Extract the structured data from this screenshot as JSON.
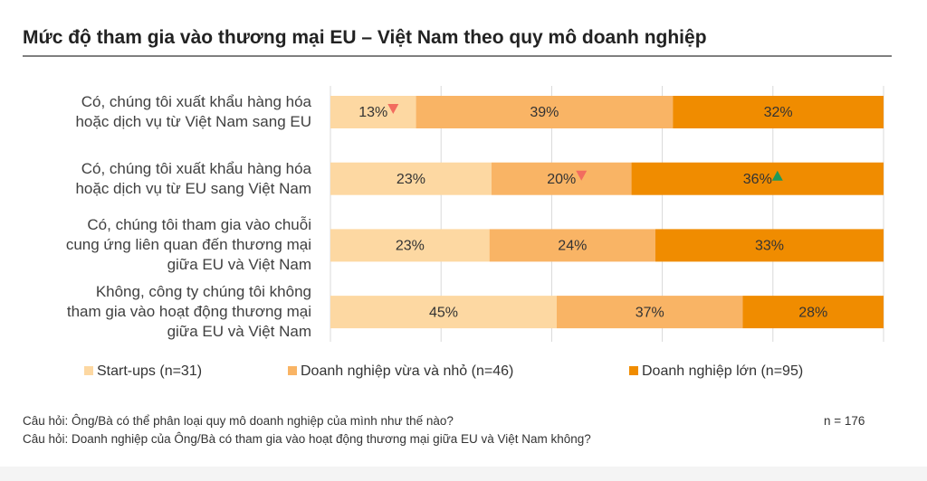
{
  "chart_data": {
    "type": "stacked_bar_horizontal",
    "stacking": "percent",
    "title": "Mức độ tham gia vào thương mại EU – Việt Nam theo quy mô doanh nghiệp",
    "categories": [
      "Có, chúng tôi xuất khẩu hàng hóa\nhoặc dịch vụ từ Việt Nam sang EU",
      "Có, chúng tôi xuất khẩu hàng hóa\nhoặc dịch vụ từ EU sang Việt Nam",
      "Có, chúng tôi tham gia vào chuỗi\ncung ứng liên quan đến thương mại\ngiữa EU và Việt Nam",
      "Không, công ty chúng tôi không\ntham gia vào hoạt động thương mại\ngiữa EU và Việt Nam"
    ],
    "series": [
      {
        "name": "Start-ups (n=31)",
        "color": "#fdd8a2",
        "values": [
          13,
          23,
          23,
          45
        ],
        "value_labels": [
          "13%",
          "23%",
          "23%",
          "45%"
        ]
      },
      {
        "name": "Doanh nghiệp vừa và nhỏ (n=46)",
        "color": "#f9b465",
        "values": [
          39,
          20,
          24,
          37
        ],
        "value_labels": [
          "39%",
          "20%",
          "24%",
          "37%"
        ]
      },
      {
        "name": "Doanh nghiệp lớn (n=95)",
        "color": "#f08c00",
        "values": [
          32,
          36,
          33,
          28
        ],
        "value_labels": [
          "32%",
          "36%",
          "33%",
          "28%"
        ]
      }
    ],
    "markers": [
      {
        "series": 0,
        "category": 0,
        "direction": "down",
        "color": "#f26c5f"
      },
      {
        "series": 1,
        "category": 1,
        "direction": "down",
        "color": "#f26c5f"
      },
      {
        "series": 2,
        "category": 1,
        "direction": "up",
        "color": "#1e9a5a"
      }
    ],
    "xlim": [
      0,
      100
    ],
    "xticks": [
      0,
      20,
      40,
      60,
      80,
      100
    ],
    "grid": true,
    "legend": "bottom",
    "footnotes": [
      "Câu hỏi: Ông/Bà có thể phân loại quy mô doanh nghiệp của mình như thế nào?",
      "Câu hỏi: Doanh nghiệp của Ông/Bà có tham gia vào hoạt động thương mại giữa EU và Việt Nam không?"
    ],
    "sample_note": "n = 176"
  }
}
